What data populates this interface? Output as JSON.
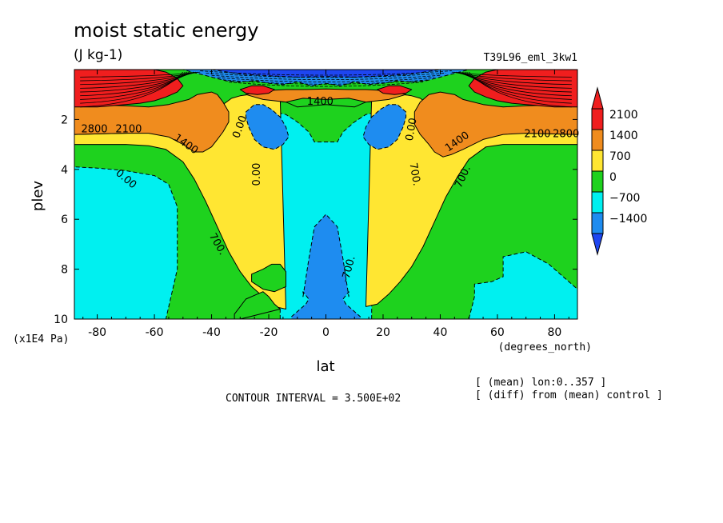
{
  "chart_data": {
    "type": "contour",
    "title": "moist static energy",
    "units": "(J kg-1)",
    "experiment": "T39L96_eml_3kw1",
    "xlabel": "lat",
    "xunits": "(degrees_north)",
    "ylabel": "plev",
    "yunits": "(x1E4 Pa)",
    "xlim": [
      -88,
      88
    ],
    "ylim": [
      0,
      10
    ],
    "y_inverted": true,
    "xticks": [
      -80,
      -60,
      -40,
      -20,
      0,
      20,
      40,
      60,
      80
    ],
    "xtick_labels": [
      "-80",
      "-60",
      "-40",
      "-20",
      "0",
      "20",
      "40",
      "60",
      "80"
    ],
    "yticks": [
      2,
      4,
      6,
      8,
      10
    ],
    "ytick_labels": [
      "2",
      "4",
      "6",
      "8",
      "10"
    ],
    "contour_interval_text": "CONTOUR INTERVAL = 3.500E+02",
    "notes": [
      "[ (mean) lon:0..357 ]",
      "[ (diff) from (mean) control ]"
    ],
    "colorbar": {
      "levels": [
        -1400,
        -700,
        0,
        700,
        1400,
        2100
      ],
      "level_labels": [
        "−1400",
        "−700",
        "0",
        "700",
        "1400",
        "2100"
      ],
      "colors": [
        "#1e8cf0",
        "#00f0f0",
        "#1ed21e",
        "#ffe632",
        "#f08c1e",
        "#f01e1e"
      ],
      "under_color": "#1e46f0",
      "over_color": "#f01e1e"
    },
    "contour_labels": [
      {
        "text": "0.00",
        "lat": -70,
        "plev": 4.4,
        "rot": 40
      },
      {
        "text": "0.00",
        "lat": -24,
        "plev": 4.2,
        "rot": -90
      },
      {
        "text": "0.00",
        "lat": -30,
        "plev": 2.3,
        "rot": -70
      },
      {
        "text": "0.00",
        "lat": 30,
        "plev": 2.4,
        "rot": -80
      },
      {
        "text": "700.",
        "lat": -38,
        "plev": 7.0,
        "rot": 60
      },
      {
        "text": "700.",
        "lat": 31,
        "plev": 4.2,
        "rot": 80
      },
      {
        "text": "700.",
        "lat": 48,
        "plev": 4.3,
        "rot": -65
      },
      {
        "text": "-700.",
        "lat": 8,
        "plev": 8.0,
        "rot": -75
      },
      {
        "text": "1400",
        "lat": -49,
        "plev": 3.0,
        "rot": 35
      },
      {
        "text": "1400",
        "lat": 46,
        "plev": 2.9,
        "rot": -35
      },
      {
        "text": "1400",
        "lat": -2,
        "plev": 1.3,
        "rot": 0
      },
      {
        "text": "2100",
        "lat": -69,
        "plev": 2.4,
        "rot": 0
      },
      {
        "text": "2100",
        "lat": 74,
        "plev": 2.6,
        "rot": 0
      },
      {
        "text": "2800",
        "lat": -81,
        "plev": 2.4,
        "rot": 0
      },
      {
        "text": "2800",
        "lat": 84,
        "plev": 2.6,
        "rot": 0
      }
    ],
    "regions": [
      {
        "level": "0",
        "color": "#1ed21e",
        "lat": [
          -88,
          -88,
          -70,
          -60,
          -50,
          -44,
          -40,
          -35,
          -28,
          -20,
          -14,
          -10,
          0,
          10,
          14,
          20,
          28,
          35,
          40,
          46,
          55,
          65,
          75,
          88,
          88
        ],
        "plev": [
          10,
          3.0,
          3.0,
          2.9,
          2.85,
          2.8,
          2.7,
          2.3,
          1.5,
          1.25,
          1.3,
          1.5,
          1.4,
          1.5,
          1.3,
          1.25,
          1.5,
          2.3,
          2.7,
          2.8,
          2.85,
          2.9,
          3.0,
          3.0,
          10
        ]
      },
      {
        "level": "-700",
        "color": "#00f0f0",
        "lat": [
          -88,
          -88,
          -80,
          -70,
          -60,
          -55,
          -52,
          -52,
          -56
        ],
        "plev": [
          10,
          3.9,
          3.95,
          4.05,
          4.25,
          4.6,
          5.5,
          8.0,
          10
        ]
      },
      {
        "level": "-700",
        "color": "#00f0f0",
        "lat": [
          88,
          88,
          78,
          70,
          62,
          62,
          58,
          52,
          52,
          50
        ],
        "plev": [
          10,
          8.8,
          7.8,
          7.3,
          7.5,
          8.3,
          8.5,
          8.6,
          9.1,
          10
        ]
      },
      {
        "level": "-700",
        "color": "#00f0f0",
        "lat": [
          -16,
          -16,
          -20,
          -24,
          -26,
          -27,
          -26,
          -22,
          -18,
          -14,
          -10,
          -6,
          -4,
          4,
          6,
          10,
          14,
          18,
          22,
          26,
          27,
          26,
          24,
          20,
          16,
          16
        ],
        "plev": [
          10,
          6.2,
          5.4,
          4.8,
          4.2,
          3.5,
          2.6,
          1.9,
          1.7,
          1.8,
          2.1,
          2.5,
          2.9,
          2.9,
          2.5,
          2.1,
          1.8,
          1.7,
          1.9,
          2.6,
          3.5,
          4.2,
          4.8,
          5.4,
          6.2,
          10
        ]
      },
      {
        "level": "700",
        "color": "#ffe632",
        "lat": [
          -88,
          -88,
          -70,
          -60,
          -50,
          -45,
          -42,
          -40,
          -36,
          -33,
          -30,
          -27,
          -20,
          -16,
          -14,
          -18,
          -22,
          -26,
          -30,
          -34,
          -38,
          -42,
          -46,
          -50,
          -56,
          -62,
          -70,
          -88
        ],
        "plev": [
          3.0,
          2.6,
          2.55,
          2.5,
          2.4,
          2.3,
          2.1,
          1.8,
          1.4,
          1.15,
          1.05,
          1.0,
          1.0,
          1.1,
          9.6,
          9.5,
          9.1,
          8.7,
          8.1,
          7.3,
          6.3,
          5.3,
          4.4,
          3.7,
          3.2,
          3.05,
          3.0,
          3.0
        ]
      },
      {
        "level": "700",
        "color": "#ffe632",
        "lat": [
          88,
          88,
          70,
          60,
          50,
          45,
          42,
          40,
          36,
          33,
          30,
          27,
          20,
          16,
          14,
          18,
          22,
          26,
          30,
          34,
          38,
          42,
          46,
          50,
          56,
          62,
          70,
          88
        ],
        "plev": [
          3.0,
          2.6,
          2.55,
          2.5,
          2.4,
          2.3,
          2.1,
          1.8,
          1.4,
          1.15,
          1.05,
          1.0,
          1.0,
          1.1,
          9.5,
          9.4,
          9.0,
          8.5,
          7.9,
          7.1,
          6.1,
          5.1,
          4.3,
          3.6,
          3.1,
          3.0,
          3.0,
          3.0
        ]
      },
      {
        "level": "0",
        "color": "#1ed21e",
        "lat": [
          -16,
          -18,
          -20,
          -22,
          -24,
          -28,
          -30,
          -32,
          -32,
          -30
        ],
        "plev": [
          9.6,
          9.4,
          9.1,
          8.9,
          9.0,
          9.2,
          9.5,
          9.8,
          10,
          10
        ]
      },
      {
        "level": "0",
        "color": "#1ed21e",
        "lat": [
          -26,
          -22,
          -19,
          -16,
          -14,
          -14,
          -18,
          -22,
          -26
        ],
        "plev": [
          8.2,
          8.0,
          7.8,
          7.8,
          8.1,
          8.7,
          8.9,
          8.8,
          8.5
        ]
      },
      {
        "level": "1400",
        "color": "#f08c1e",
        "lat": [
          -88,
          -88,
          -70,
          -62,
          -55,
          -48,
          -45,
          -40,
          -38,
          -36,
          -34,
          -34,
          -36,
          -38,
          -40,
          -43,
          -46,
          -50,
          -55,
          -62,
          -70,
          -88
        ],
        "plev": [
          2.6,
          1.4,
          1.45,
          1.5,
          1.4,
          1.2,
          1.0,
          0.9,
          1.0,
          1.3,
          1.7,
          2.1,
          2.5,
          2.8,
          3.1,
          3.3,
          3.3,
          3.0,
          2.7,
          2.55,
          2.55,
          2.6
        ]
      },
      {
        "level": "1400",
        "color": "#f08c1e",
        "lat": [
          88,
          88,
          70,
          62,
          55,
          48,
          45,
          40,
          36,
          33,
          31,
          31,
          33,
          36,
          38,
          41,
          44,
          48,
          55,
          62,
          70,
          88
        ],
        "plev": [
          2.6,
          1.4,
          1.45,
          1.5,
          1.4,
          1.2,
          1.0,
          0.9,
          1.0,
          1.3,
          1.7,
          2.2,
          2.6,
          3.0,
          3.3,
          3.5,
          3.4,
          3.2,
          2.8,
          2.6,
          2.55,
          2.6
        ]
      },
      {
        "level": "1400",
        "color": "#f08c1e",
        "lat": [
          -28,
          -22,
          -14,
          -8,
          0,
          8,
          14,
          22,
          28,
          22,
          14,
          8,
          0,
          -8,
          -14,
          -22
        ],
        "plev": [
          1.0,
          0.85,
          0.8,
          0.8,
          0.78,
          0.8,
          0.8,
          0.85,
          1.0,
          1.2,
          1.3,
          1.15,
          1.2,
          1.15,
          1.3,
          1.2
        ]
      },
      {
        "level": "2100",
        "color": "#f01e1e",
        "lat": [
          -88,
          -88,
          -85,
          -80,
          -75,
          -70,
          -65,
          -60,
          -56,
          -52,
          -50,
          -52,
          -56,
          -60,
          -65,
          -70,
          -75,
          -80,
          -85
        ],
        "plev": [
          1.5,
          0,
          0,
          0,
          0,
          0,
          0,
          0,
          0.1,
          0.35,
          0.65,
          0.9,
          1.1,
          1.25,
          1.35,
          1.4,
          1.45,
          1.5,
          1.5
        ]
      },
      {
        "level": "2100",
        "color": "#f01e1e",
        "lat": [
          88,
          88,
          85,
          80,
          75,
          70,
          65,
          60,
          56,
          52,
          50,
          52,
          56,
          60,
          65,
          70,
          75,
          80,
          85
        ],
        "plev": [
          1.5,
          0,
          0,
          0,
          0,
          0,
          0,
          0,
          0.1,
          0.35,
          0.65,
          0.9,
          1.1,
          1.25,
          1.35,
          1.4,
          1.45,
          1.5,
          1.5
        ]
      },
      {
        "level": "2100",
        "color": "#f01e1e",
        "lat": [
          -30,
          -26,
          -22,
          -18,
          -20,
          -24,
          -28
        ],
        "plev": [
          0.8,
          0.65,
          0.65,
          0.8,
          0.95,
          1.0,
          0.95
        ]
      },
      {
        "level": "2100",
        "color": "#f01e1e",
        "lat": [
          18,
          22,
          26,
          30,
          28,
          24,
          20
        ],
        "plev": [
          0.8,
          0.65,
          0.65,
          0.8,
          0.95,
          1.0,
          0.95
        ]
      },
      {
        "level": "-1400",
        "color": "#1e8cf0",
        "lat": [
          -50,
          -45,
          -40,
          -35,
          -30,
          -25,
          -20,
          -15,
          -10,
          -5,
          0,
          5,
          10,
          15,
          20,
          25,
          30,
          35,
          40,
          45,
          50,
          45,
          40,
          35,
          30,
          25,
          20,
          15,
          10,
          5,
          0,
          -5,
          -10,
          -15,
          -20,
          -25,
          -30,
          -35,
          -40,
          -45
        ],
        "plev": [
          0,
          0,
          0,
          0,
          0,
          0,
          0,
          0,
          0,
          0,
          0,
          0,
          0,
          0,
          0,
          0,
          0,
          0,
          0,
          0,
          0,
          0.15,
          0.3,
          0.45,
          0.5,
          0.45,
          0.55,
          0.6,
          0.5,
          0.65,
          0.55,
          0.65,
          0.5,
          0.6,
          0.55,
          0.45,
          0.5,
          0.45,
          0.3,
          0.15
        ]
      },
      {
        "level": "-1400",
        "color": "#1e8cf0",
        "lat": [
          -28,
          -25,
          -22,
          -19,
          -16,
          -14,
          -13,
          -15,
          -18,
          -22,
          -25,
          -27,
          -28
        ],
        "plev": [
          1.7,
          1.4,
          1.4,
          1.6,
          1.9,
          2.3,
          2.7,
          3.0,
          3.2,
          3.1,
          2.8,
          2.3,
          1.9
        ]
      },
      {
        "level": "-1400",
        "color": "#1e8cf0",
        "lat": [
          28,
          25,
          22,
          19,
          16,
          14,
          13,
          15,
          18,
          22,
          25,
          27,
          28
        ],
        "plev": [
          1.7,
          1.4,
          1.4,
          1.6,
          1.9,
          2.3,
          2.7,
          3.0,
          3.2,
          3.1,
          2.8,
          2.3,
          1.9
        ]
      },
      {
        "level": "-1400",
        "color": "#1e8cf0",
        "lat": [
          -8,
          -6,
          -4,
          0,
          4,
          6,
          8,
          8,
          6,
          7,
          10,
          12,
          12,
          -12,
          -12,
          -10,
          -7,
          -6,
          -8
        ],
        "plev": [
          9.1,
          7.6,
          6.3,
          5.8,
          6.3,
          7.6,
          9.1,
          8.9,
          9.2,
          9.4,
          9.7,
          9.9,
          10,
          10,
          9.9,
          9.7,
          9.4,
          9.2,
          8.9
        ]
      },
      {
        "level": "-2100",
        "color": "#1e46f0",
        "lat": [
          -40,
          -30,
          -20,
          -10,
          0,
          10,
          20,
          30,
          40,
          30,
          20,
          10,
          0,
          -10,
          -20,
          -30
        ],
        "plev": [
          0,
          0,
          0,
          0,
          0,
          0,
          0,
          0,
          0,
          0.18,
          0.25,
          0.3,
          0.28,
          0.3,
          0.25,
          0.18
        ]
      }
    ]
  }
}
